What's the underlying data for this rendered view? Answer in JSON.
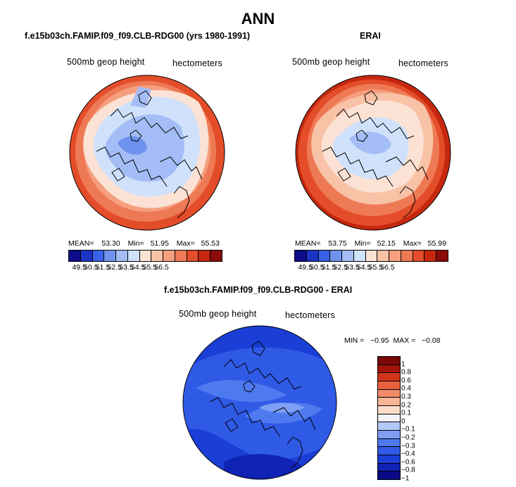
{
  "main_title": "ANN",
  "colors": {
    "abs_scale": [
      "#0d0d8c",
      "#1c34c6",
      "#3a62e6",
      "#6e92ee",
      "#a4bdf6",
      "#d0e1fb",
      "#fbe2d4",
      "#f8c2a6",
      "#f59f7e",
      "#ee7a55",
      "#e44d2a",
      "#c6280f",
      "#8a0c0a"
    ],
    "diff_scale": [
      "#0a0a86",
      "#0f23b4",
      "#1a3ed6",
      "#2f5ae6",
      "#4e7af0",
      "#7e9ff4",
      "#b3c9fa",
      "#f1f3f6",
      "#fbdcc9",
      "#f8b595",
      "#f28c68",
      "#e8613e",
      "#d2351b",
      "#a41409",
      "#7a0808"
    ]
  },
  "panels": {
    "left": {
      "title": "f.e15b03ch.FAMIP.f09_f09.CLB-RDG00 (yrs 1980-1991)",
      "label": "500mb geop height",
      "units": "hectometers",
      "mean_label": "MEAN=",
      "mean": "53.30",
      "min_label": "Min=",
      "min": "51.95",
      "max_label": "Max=",
      "max": "55.53"
    },
    "right": {
      "title": "ERAI",
      "label": "500mb geop height",
      "units": "hectometers",
      "mean_label": "MEAN=",
      "mean": "53.75",
      "min_label": "Min=",
      "min": "52.15",
      "max_label": "Max=",
      "max": "55.99"
    },
    "diff": {
      "title": "f.e15b03ch.FAMIP.f09_f09.CLB-RDG00 - ERAI",
      "label": "500mb geop height",
      "units": "hectometers",
      "minmax": "MIN =   −0.95  MAX =   −0.08"
    }
  },
  "chart_data": [
    {
      "type": "heatmap",
      "title": "f.e15b03ch.FAMIP.f09_f09.CLB-RDG00 (yrs 1980-1991)",
      "variable": "500mb geop height",
      "units": "hectometers",
      "mean": 53.3,
      "min": 51.95,
      "max": 55.53,
      "colorbar_levels": [
        "49.5",
        "50.5",
        "51.5",
        "52.5",
        "53.5",
        "54.5",
        "55.5",
        "56.5"
      ]
    },
    {
      "type": "heatmap",
      "title": "ERAI",
      "variable": "500mb geop height",
      "units": "hectometers",
      "mean": 53.75,
      "min": 52.15,
      "max": 55.99,
      "colorbar_levels": [
        "49.5",
        "50.5",
        "51.5",
        "52.5",
        "53.5",
        "54.5",
        "55.5",
        "56.5"
      ]
    },
    {
      "type": "heatmap",
      "title": "f.e15b03ch.FAMIP.f09_f09.CLB-RDG00 - ERAI",
      "variable": "500mb geop height",
      "units": "hectometers",
      "min": -0.95,
      "max": -0.08,
      "colorbar_levels": [
        "1",
        "0.8",
        "0.6",
        "0.4",
        "0.3",
        "0.2",
        "0.1",
        "0",
        "−0.1",
        "−0.2",
        "−0.3",
        "−0.4",
        "−0.6",
        "−0.8",
        "−1"
      ]
    }
  ]
}
